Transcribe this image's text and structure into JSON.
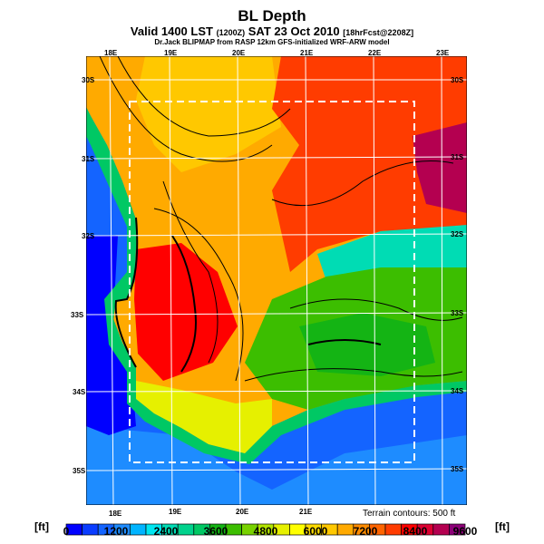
{
  "header": {
    "title": "BL Depth",
    "valid": "Valid 1400 LST",
    "valid_z": "(1200Z)",
    "date": "SAT 23 Oct 2010",
    "fcst": "[18hrFcst@2208Z]",
    "subtitle": "Dr.Jack BLIPMAP from RASP 12km GFS-initialized WRF-ARW model"
  },
  "axes": {
    "lon_top": [
      "18E",
      "19E",
      "20E",
      "21E",
      "22E",
      "23E"
    ],
    "lon_bottom": [
      "18E",
      "19E",
      "20E",
      "21E"
    ],
    "lat": [
      "30S",
      "31S",
      "32S",
      "33S",
      "34S",
      "35S"
    ]
  },
  "note": "Terrain contours: 500 ft",
  "colorbar": {
    "unit": "[ft]",
    "labels": [
      "0",
      "1200",
      "2400",
      "3600",
      "4800",
      "6000",
      "7200",
      "8400",
      "9600"
    ],
    "colors": [
      "#0000ff",
      "#0a3cff",
      "#1464ff",
      "#1e8cff",
      "#00b4ff",
      "#00e6f0",
      "#00dcb4",
      "#00d28c",
      "#00c864",
      "#14b414",
      "#3cbe00",
      "#78d200",
      "#b4e600",
      "#e6f000",
      "#ffff00",
      "#ffdc00",
      "#ffc800",
      "#ffaa00",
      "#ff8c00",
      "#ff6400",
      "#ff3c00",
      "#ff0000",
      "#dc0032",
      "#b40050",
      "#8c0078"
    ]
  }
}
